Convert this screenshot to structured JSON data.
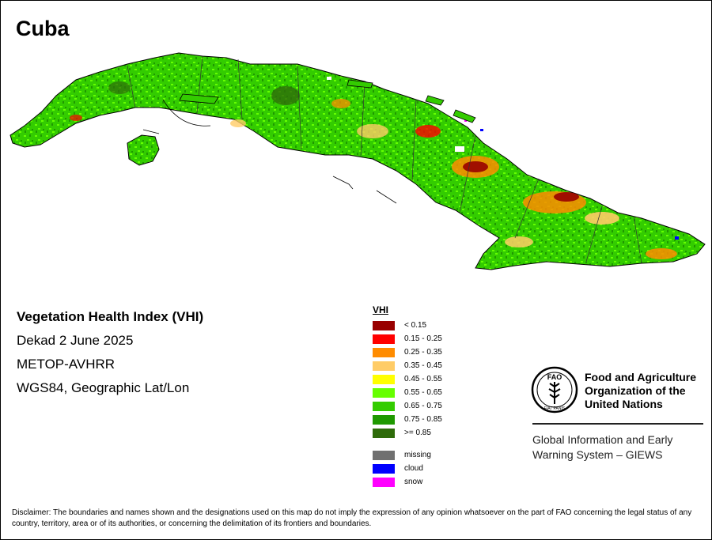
{
  "title": "Cuba",
  "info": {
    "index_name": "Vegetation Health Index (VHI)",
    "period": "Dekad 2 June 2025",
    "sensor": "METOP-AVHRR",
    "projection": "WGS84, Geographic Lat/Lon"
  },
  "legend": {
    "header": "VHI",
    "classes": [
      {
        "label": "< 0.15",
        "color": "#990000"
      },
      {
        "label": "0.15 - 0.25",
        "color": "#ff0000"
      },
      {
        "label": "0.25 - 0.35",
        "color": "#ff8c00"
      },
      {
        "label": "0.35 - 0.45",
        "color": "#ffcc66"
      },
      {
        "label": "0.45 - 0.55",
        "color": "#ffff00"
      },
      {
        "label": "0.55 - 0.65",
        "color": "#66ff00"
      },
      {
        "label": "0.65 - 0.75",
        "color": "#33cc00"
      },
      {
        "label": "0.75 - 0.85",
        "color": "#1f9900"
      },
      {
        "label": ">= 0.85",
        "color": "#2e6b0a"
      }
    ],
    "special": [
      {
        "label": "missing",
        "color": "#707070"
      },
      {
        "label": "cloud",
        "color": "#0000ff"
      },
      {
        "label": "snow",
        "color": "#ff00ff"
      }
    ]
  },
  "fao": {
    "name": "Food and Agriculture\nOrganization of the\nUnited Nations",
    "emblem_text": "FAO",
    "motto": "FIAT PANIS",
    "giews": "Global Information and Early\nWarning System – GIEWS"
  },
  "disclaimer": "Disclaimer: The boundaries and names shown and the designations used on this map do not imply the expression of any opinion whatsoever on the part of FAO concerning the legal status of any country, territory, area or of its authorities, or concerning the delimitation of its frontiers and boundaries.",
  "map_colors": {
    "base": "#33cc00",
    "light": "#66ff00",
    "dark": "#1f9900",
    "stress_high": "#990000",
    "stress_med": "#ff0000",
    "stress_low": "#ff8c00",
    "stress_mild": "#ffcc66"
  }
}
